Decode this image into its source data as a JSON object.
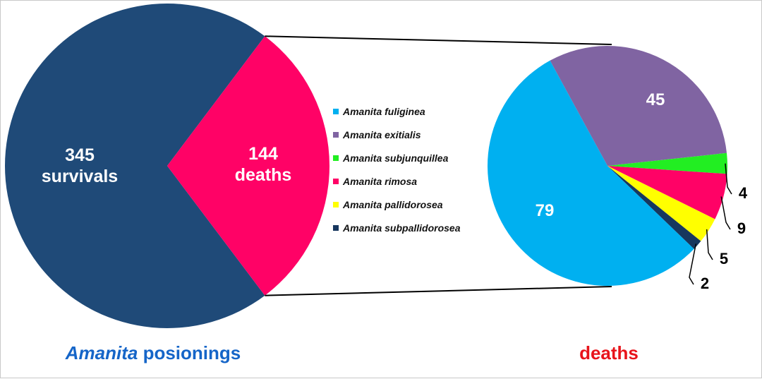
{
  "chart_data": [
    {
      "type": "pie",
      "slices": [
        {
          "label": "survivals",
          "value": 345,
          "color": "#1f4a78"
        },
        {
          "label": "deaths",
          "value": 144,
          "color": "#ff0266"
        }
      ],
      "caption": {
        "italic": "Amanita",
        "rest": " posionings",
        "color": "#1565c8"
      }
    },
    {
      "type": "pie",
      "slices": [
        {
          "label": "Amanita fuliginea",
          "value": 79,
          "color": "#00b0f0"
        },
        {
          "label": "Amanita exitialis",
          "value": 45,
          "color": "#8064a2"
        },
        {
          "label": "Amanita subjunquillea",
          "value": 4,
          "color": "#22ee22"
        },
        {
          "label": "Amanita rimosa",
          "value": 9,
          "color": "#ff0266"
        },
        {
          "label": "Amanita pallidorosea",
          "value": 5,
          "color": "#ffff00"
        },
        {
          "label": "Amanita subpallidorosea",
          "value": 2,
          "color": "#17375e"
        }
      ],
      "caption": {
        "text": "deaths",
        "color": "#e8141b"
      }
    }
  ],
  "legend_placement": "center"
}
